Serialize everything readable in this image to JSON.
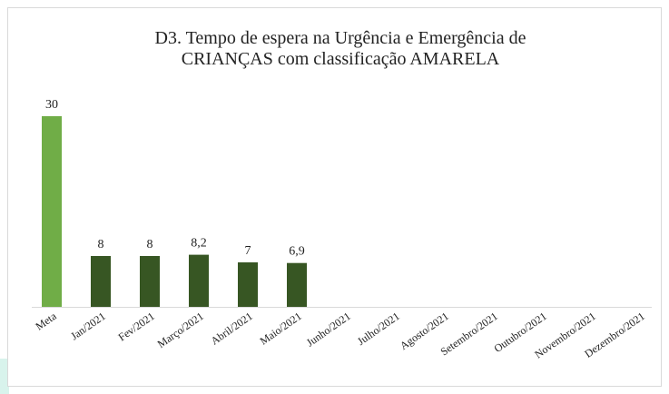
{
  "chart_data": {
    "type": "bar",
    "title": [
      "D3. Tempo de espera na Urgência e Emergência de",
      "CRIANÇAS com classificação AMARELA"
    ],
    "categories": [
      "Meta",
      "Jan/2021",
      "Fev/2021",
      "Março/2021",
      "Abril/2021",
      "Maio/2021",
      "Junho/2021",
      "Julho/2021",
      "Agosto/2021",
      "Setembro/2021",
      "Outubro/2021",
      "Novembro/2021",
      "Dezembro/2021"
    ],
    "values": [
      30,
      8,
      8,
      8.2,
      7,
      6.9,
      null,
      null,
      null,
      null,
      null,
      null,
      null
    ],
    "value_labels": [
      "30",
      "8",
      "8",
      "8,2",
      "7",
      "6,9",
      null,
      null,
      null,
      null,
      null,
      null,
      null
    ],
    "colors": [
      "#70ad47",
      "#375623",
      "#375623",
      "#375623",
      "#375623",
      "#375623",
      null,
      null,
      null,
      null,
      null,
      null,
      null
    ]
  }
}
